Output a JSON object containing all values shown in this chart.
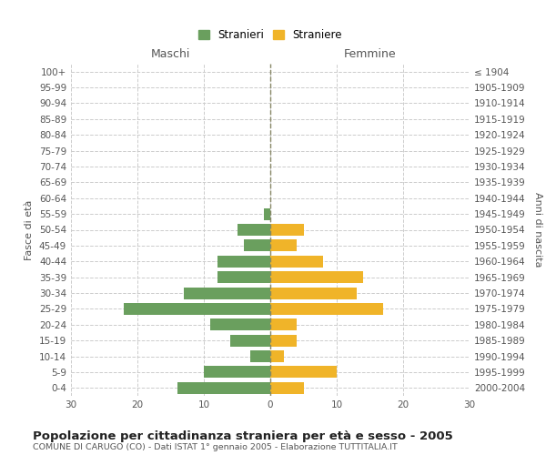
{
  "age_groups": [
    "0-4",
    "5-9",
    "10-14",
    "15-19",
    "20-24",
    "25-29",
    "30-34",
    "35-39",
    "40-44",
    "45-49",
    "50-54",
    "55-59",
    "60-64",
    "65-69",
    "70-74",
    "75-79",
    "80-84",
    "85-89",
    "90-94",
    "95-99",
    "100+"
  ],
  "birth_years": [
    "2000-2004",
    "1995-1999",
    "1990-1994",
    "1985-1989",
    "1980-1984",
    "1975-1979",
    "1970-1974",
    "1965-1969",
    "1960-1964",
    "1955-1959",
    "1950-1954",
    "1945-1949",
    "1940-1944",
    "1935-1939",
    "1930-1934",
    "1925-1929",
    "1920-1924",
    "1915-1919",
    "1910-1914",
    "1905-1909",
    "≤ 1904"
  ],
  "males": [
    14,
    10,
    3,
    6,
    9,
    22,
    13,
    8,
    8,
    4,
    5,
    1,
    0,
    0,
    0,
    0,
    0,
    0,
    0,
    0,
    0
  ],
  "females": [
    5,
    10,
    2,
    4,
    4,
    17,
    13,
    14,
    8,
    4,
    5,
    0,
    0,
    0,
    0,
    0,
    0,
    0,
    0,
    0,
    0
  ],
  "male_color": "#6a9f5e",
  "female_color": "#f0b429",
  "background_color": "#ffffff",
  "grid_color": "#cccccc",
  "title": "Popolazione per cittadinanza straniera per età e sesso - 2005",
  "subtitle": "COMUNE DI CARUGO (CO) - Dati ISTAT 1° gennaio 2005 - Elaborazione TUTTITALIA.IT",
  "xlabel_left": "Maschi",
  "xlabel_right": "Femmine",
  "ylabel_left": "Fasce di età",
  "ylabel_right": "Anni di nascita",
  "legend_males": "Stranieri",
  "legend_females": "Straniere",
  "xlim": 30
}
